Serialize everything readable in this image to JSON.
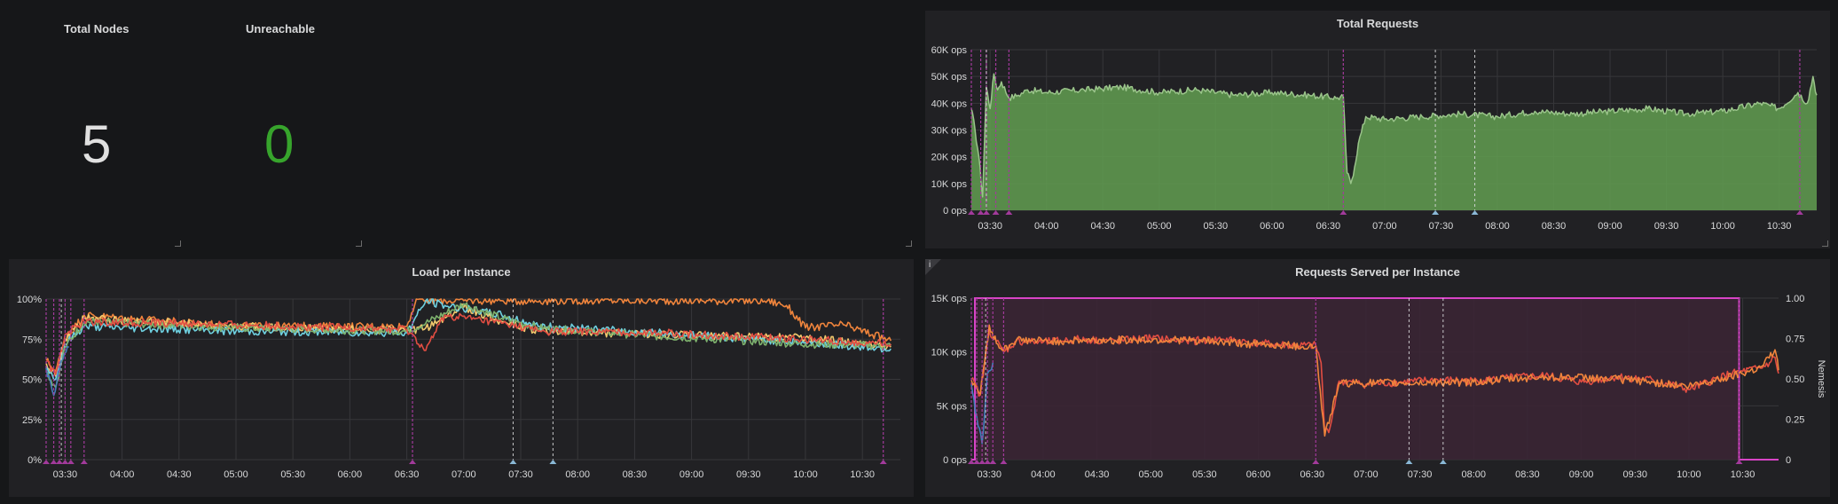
{
  "stats": {
    "total_nodes": {
      "title": "Total Nodes",
      "value": "5",
      "color": "#e0e0e0"
    },
    "unreachable": {
      "title": "Unreachable",
      "value": "0",
      "color": "#37a42c"
    }
  },
  "colors": {
    "annotation_magenta": "#a23a9b",
    "annotation_white": "#d8d9da",
    "annotation_blue": "#8ab8d6",
    "grid": "#37373a",
    "requests_fill": "#629e51",
    "requests_line": "#9ac48a",
    "nemesis": "#d844c6",
    "nemesis_fill": "#3b2435"
  },
  "icons": [
    "info-icon",
    "resize-handle-icon"
  ],
  "chart_data": [
    {
      "id": "total_requests",
      "type": "area",
      "title": "Total Requests",
      "y_ticks": [
        "60K ops",
        "50K ops",
        "40K ops",
        "30K ops",
        "20K ops",
        "10K ops",
        "0 ops"
      ],
      "ylim": [
        0,
        60000
      ],
      "x_ticks": [
        "03:30",
        "04:00",
        "04:30",
        "05:00",
        "05:30",
        "06:00",
        "06:30",
        "07:00",
        "07:30",
        "08:00",
        "08:30",
        "09:00",
        "09:30",
        "10:00",
        "10:30"
      ],
      "xlim_minutes": [
        200,
        650
      ],
      "grid": true,
      "series": [
        {
          "color": "#9ac48a",
          "x": [
            200,
            202,
            204,
            206,
            208,
            210,
            212,
            214,
            216,
            220,
            225,
            230,
            240,
            260,
            280,
            300,
            320,
            340,
            360,
            380,
            395,
            398,
            400,
            402,
            404,
            406,
            410,
            420,
            440,
            460,
            480,
            500,
            520,
            540,
            560,
            580,
            600,
            620,
            630,
            640,
            645,
            648,
            650
          ],
          "y": [
            38000,
            30000,
            20000,
            5000,
            46000,
            38000,
            51000,
            45000,
            48000,
            42000,
            43000,
            45000,
            44000,
            45000,
            46000,
            44000,
            45000,
            43000,
            44000,
            43000,
            42000,
            42500,
            14000,
            10000,
            16000,
            25000,
            35000,
            34000,
            35000,
            36000,
            35000,
            37000,
            36000,
            37000,
            38000,
            36000,
            37000,
            40000,
            38000,
            44000,
            40000,
            50000,
            43000
          ]
        }
      ],
      "annotations": {
        "magenta_at": [
          200,
          205,
          208,
          213,
          220,
          398,
          641
        ],
        "white_at": [
          208,
          447,
          468
        ],
        "blue_at": [
          447,
          468
        ]
      }
    },
    {
      "id": "load_per_instance",
      "type": "line",
      "title": "Load per Instance",
      "y_ticks": [
        "100%",
        "75%",
        "50%",
        "25%",
        "0%"
      ],
      "ylim": [
        0,
        100
      ],
      "x_ticks": [
        "03:30",
        "04:00",
        "04:30",
        "05:00",
        "05:30",
        "06:00",
        "06:30",
        "07:00",
        "07:30",
        "08:00",
        "08:30",
        "09:00",
        "09:30",
        "10:00",
        "10:30"
      ],
      "xlim_minutes": [
        200,
        650
      ],
      "grid": true,
      "series": [
        {
          "color": "#ef843c",
          "x": [
            200,
            205,
            210,
            220,
            300,
            390,
            395,
            400,
            420,
            440,
            460,
            520,
            580,
            590,
            600,
            620,
            645
          ],
          "y": [
            62,
            55,
            75,
            90,
            83,
            83,
            100,
            99,
            99,
            99,
            99,
            99,
            99,
            96,
            82,
            84,
            74
          ]
        },
        {
          "color": "#f2c96d",
          "x": [
            200,
            205,
            210,
            220,
            300,
            390,
            400,
            420,
            440,
            460,
            520,
            600,
            645
          ],
          "y": [
            60,
            52,
            75,
            88,
            83,
            80,
            82,
            95,
            86,
            80,
            78,
            76,
            70
          ]
        },
        {
          "color": "#6ed0e0",
          "x": [
            200,
            205,
            210,
            220,
            300,
            390,
            400,
            410,
            440,
            460,
            520,
            600,
            645
          ],
          "y": [
            58,
            50,
            72,
            83,
            80,
            79,
            99,
            96,
            90,
            83,
            79,
            73,
            69
          ]
        },
        {
          "color": "#7eb26d",
          "x": [
            200,
            205,
            210,
            220,
            300,
            390,
            400,
            420,
            440,
            460,
            520,
            600,
            645
          ],
          "y": [
            55,
            45,
            70,
            86,
            82,
            80,
            85,
            97,
            88,
            82,
            77,
            72,
            71
          ]
        },
        {
          "color": "#e24d42",
          "x": [
            200,
            205,
            210,
            220,
            300,
            390,
            400,
            410,
            440,
            460,
            520,
            600,
            645
          ],
          "y": [
            61,
            53,
            78,
            86,
            84,
            81,
            68,
            90,
            85,
            80,
            79,
            75,
            72
          ]
        },
        {
          "color": "#447ebc",
          "x": [
            200,
            204,
            208,
            212
          ],
          "y": [
            57,
            40,
            62,
            70
          ]
        }
      ],
      "annotations": {
        "magenta_at": [
          200,
          204,
          207,
          210,
          213,
          220,
          393,
          641
        ],
        "white_at": [
          208,
          446,
          467
        ],
        "blue_at": [
          446,
          467
        ]
      }
    },
    {
      "id": "requests_served_per_instance",
      "type": "line",
      "title": "Requests Served per Instance",
      "y_ticks": [
        "15K ops",
        "10K ops",
        "5K ops",
        "0 ops"
      ],
      "ylim": [
        0,
        15000
      ],
      "y2_ticks": [
        "1.00",
        "0.75",
        "0.50",
        "0.25",
        "0"
      ],
      "y2_label": "Nemesis",
      "y2lim": [
        0,
        1
      ],
      "x_ticks": [
        "03:30",
        "04:00",
        "04:30",
        "05:00",
        "05:30",
        "06:00",
        "06:30",
        "07:00",
        "07:30",
        "08:00",
        "08:30",
        "09:00",
        "09:30",
        "10:00",
        "10:30"
      ],
      "xlim_minutes": [
        200,
        650
      ],
      "grid": true,
      "series": [
        {
          "color": "#e24d42",
          "x": [
            200,
            205,
            210,
            214,
            218,
            225,
            240,
            260,
            280,
            300,
            320,
            340,
            360,
            380,
            392,
            395,
            397,
            400,
            405,
            420,
            440,
            460,
            480,
            500,
            520,
            540,
            560,
            580,
            600,
            620,
            630,
            640,
            645,
            648,
            650
          ],
          "y": [
            7500,
            6000,
            12000,
            11000,
            10000,
            11000,
            10900,
            11200,
            11000,
            11300,
            11000,
            11200,
            10800,
            10600,
            10600,
            9000,
            2500,
            3000,
            7300,
            7000,
            7200,
            7400,
            7300,
            7600,
            7800,
            7200,
            7700,
            7400,
            6500,
            7800,
            8200,
            8500,
            9000,
            9500,
            8000
          ]
        },
        {
          "color": "#ef843c",
          "x": [
            200,
            205,
            210,
            214,
            218,
            225,
            240,
            280,
            320,
            360,
            392,
            397,
            405,
            440,
            480,
            520,
            560,
            600,
            620,
            640,
            648,
            650
          ],
          "y": [
            7400,
            6100,
            12500,
            10800,
            10200,
            11100,
            11000,
            11100,
            11100,
            10700,
            10500,
            2200,
            7100,
            7100,
            7200,
            7700,
            7500,
            6800,
            7600,
            8600,
            10200,
            8300
          ]
        },
        {
          "color": "#447ebc",
          "x": [
            200,
            203,
            206,
            209,
            212
          ],
          "y": [
            7000,
            4000,
            1500,
            8000,
            9000
          ]
        }
      ],
      "nemesis": {
        "color": "#d844c6",
        "x": [
          200,
          202,
          202,
          628,
          628,
          650
        ],
        "y": [
          0,
          0,
          1,
          1,
          0,
          0
        ]
      },
      "annotations": {
        "magenta_at": [
          200,
          203,
          206,
          209,
          212,
          218,
          392,
          628
        ],
        "white_at": [
          208,
          444,
          463
        ],
        "blue_at": [
          444,
          463
        ]
      }
    }
  ]
}
